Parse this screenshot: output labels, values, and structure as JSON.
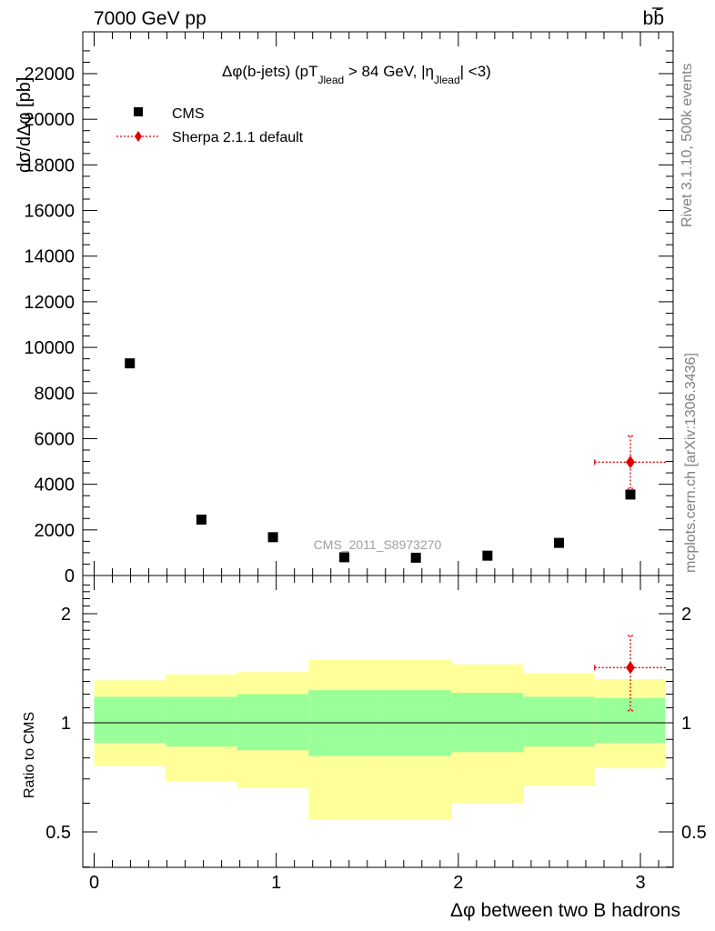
{
  "header": {
    "beam": "7000 GeV pp",
    "process": "bb̄"
  },
  "side_text": {
    "rivet": "Rivet 3.1.10,  500k events",
    "mcplots": "mcplots.cern.ch [arXiv:1306.3436]"
  },
  "main": {
    "title": "Δφ(b-jets) (pT",
    "title_sub1": "Jlead",
    "title_mid": " >  84 GeV, |η",
    "title_sub2": "Jlead",
    "title_end": "| <3)",
    "ylabel": "dσ/dΔφ [pb]",
    "analysis_id": "CMS_2011_S8973270",
    "legend": [
      {
        "label": "CMS",
        "marker": "square",
        "color": "#000000"
      },
      {
        "label": "Sherpa 2.1.1 default",
        "marker": "diamond",
        "color": "#e00000"
      }
    ],
    "ytick_labels": [
      "0",
      "2000",
      "4000",
      "6000",
      "8000",
      "10000",
      "12000",
      "14000",
      "16000",
      "18000",
      "20000",
      "22000"
    ]
  },
  "ratio": {
    "ylabel": "Ratio to CMS",
    "ytick_labels": [
      "0.5",
      "1",
      "2"
    ]
  },
  "xaxis": {
    "label": "Δφ between two B hadrons",
    "tick_labels": [
      "0",
      "1",
      "2",
      "3"
    ]
  },
  "chart_data": [
    {
      "type": "scatter",
      "panel": "main",
      "title": "Δφ(b-jets) (pT_Jlead > 84 GeV, |η_Jlead| <3)",
      "xlabel": "Δφ between two B hadrons",
      "ylabel": "dσ/dΔφ [pb]",
      "xlim": [
        -0.07,
        3.19
      ],
      "ylim": [
        0,
        23800
      ],
      "legend_position": "top-left",
      "series": [
        {
          "name": "CMS",
          "color": "#000000",
          "x": [
            0.196,
            0.589,
            0.982,
            1.374,
            1.767,
            2.16,
            2.553,
            2.945
          ],
          "y": [
            9300,
            2450,
            1680,
            800,
            780,
            870,
            1430,
            3550
          ],
          "xerr": [
            0.196,
            0.196,
            0.196,
            0.196,
            0.196,
            0.196,
            0.196,
            0.196
          ]
        },
        {
          "name": "Sherpa 2.1.1 default",
          "color": "#e00000",
          "x": [
            2.945
          ],
          "y": [
            4970
          ],
          "xerr": [
            0.196
          ],
          "yerr": [
            1150
          ]
        }
      ]
    },
    {
      "type": "area",
      "panel": "ratio",
      "ylabel": "Ratio to CMS",
      "xlabel": "Δφ between two B hadrons",
      "yscale": "log",
      "ylim": [
        0.4,
        2.5
      ],
      "bin_edges": [
        0,
        0.393,
        0.785,
        1.178,
        1.571,
        1.963,
        2.356,
        2.749,
        3.142
      ],
      "band_outer_low": [
        0.76,
        0.69,
        0.66,
        0.54,
        0.54,
        0.6,
        0.67,
        0.75
      ],
      "band_outer_high": [
        1.31,
        1.36,
        1.38,
        1.49,
        1.49,
        1.45,
        1.37,
        1.32
      ],
      "band_inner_low": [
        0.88,
        0.86,
        0.84,
        0.81,
        0.81,
        0.83,
        0.86,
        0.88
      ],
      "band_inner_high": [
        1.18,
        1.18,
        1.2,
        1.23,
        1.23,
        1.21,
        1.18,
        1.17
      ],
      "band_outer_color": "#ffff99",
      "band_inner_color": "#99ff99",
      "series": [
        {
          "name": "Sherpa 2.1.1 default",
          "color": "#e00000",
          "x": [
            2.945
          ],
          "y": [
            1.42
          ],
          "xerr": [
            0.196
          ],
          "yerr_low": [
            0.34
          ],
          "yerr_high": [
            0.32
          ]
        }
      ]
    }
  ]
}
